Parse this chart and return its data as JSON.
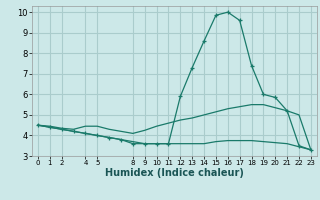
{
  "xlabel": "Humidex (Indice chaleur)",
  "bg_color": "#cce8e8",
  "grid_color": "#aacccc",
  "line_color": "#1a7a6a",
  "hours": [
    0,
    1,
    2,
    3,
    4,
    5,
    6,
    7,
    8,
    9,
    10,
    11,
    12,
    13,
    14,
    15,
    16,
    17,
    18,
    19,
    20,
    21,
    22,
    23
  ],
  "humidex_main": [
    4.5,
    4.4,
    4.3,
    4.2,
    4.1,
    4.0,
    3.9,
    3.8,
    3.6,
    3.6,
    3.6,
    3.6,
    5.9,
    7.3,
    8.6,
    9.85,
    10.0,
    9.6,
    7.4,
    6.0,
    5.85,
    5.2,
    3.5,
    3.3
  ],
  "humidex_upper": [
    4.5,
    4.45,
    4.35,
    4.3,
    4.45,
    4.45,
    4.3,
    4.2,
    4.1,
    4.25,
    4.45,
    4.6,
    4.75,
    4.85,
    5.0,
    5.15,
    5.3,
    5.4,
    5.5,
    5.5,
    5.35,
    5.2,
    5.0,
    3.3
  ],
  "humidex_lower": [
    4.5,
    4.4,
    4.3,
    4.2,
    4.1,
    4.0,
    3.9,
    3.8,
    3.7,
    3.6,
    3.6,
    3.6,
    3.6,
    3.6,
    3.6,
    3.7,
    3.75,
    3.75,
    3.75,
    3.7,
    3.65,
    3.6,
    3.45,
    3.3
  ],
  "ylim_min": 3.0,
  "ylim_max": 10.3,
  "yticks": [
    3,
    4,
    5,
    6,
    7,
    8,
    9,
    10
  ],
  "xtick_positions": [
    0,
    1,
    2,
    4,
    5,
    8,
    9,
    10,
    11,
    12,
    13,
    14,
    15,
    16,
    17,
    18,
    19,
    20,
    21,
    22,
    23
  ],
  "xtick_labels": [
    "0",
    "1",
    "2",
    "4",
    "5",
    "8",
    "9",
    "10",
    "11",
    "12",
    "13",
    "14",
    "15",
    "16",
    "17",
    "18",
    "19",
    "20",
    "21",
    "22",
    "23"
  ],
  "xlabel_fontsize": 7,
  "xlabel_color": "#1a5555",
  "ytick_fontsize": 6,
  "xtick_fontsize": 5
}
